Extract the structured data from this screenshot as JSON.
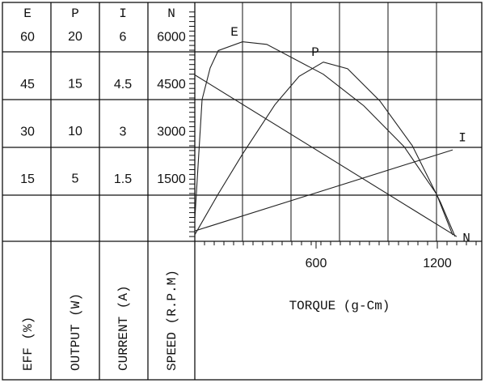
{
  "chart_data": {
    "type": "line",
    "x_label": "TORQUE (g-Cm)",
    "xlim": [
      0,
      1420
    ],
    "xticks": [
      600,
      1200
    ],
    "series": [
      {
        "name": "E",
        "axis_label": "EFF (%)",
        "color": "#222",
        "ylim": [
          0,
          74
        ],
        "yticks": [
          15,
          30,
          45,
          60
        ],
        "x": [
          0,
          36,
          76,
          116,
          236,
          356,
          636,
          836,
          1036,
          1196,
          1276
        ],
        "values": [
          7,
          45,
          55,
          60.5,
          63.3,
          62.5,
          53,
          43,
          30,
          15,
          2
        ]
      },
      {
        "name": "P",
        "axis_label": "OUTPUT (W)",
        "color": "#222",
        "ylim": [
          0,
          24.6
        ],
        "yticks": [
          5,
          10,
          15,
          20
        ],
        "x": [
          0,
          116,
          236,
          396,
          516,
          636,
          756,
          916,
          1076,
          1216,
          1288
        ],
        "values": [
          0.7,
          5,
          9.2,
          14.4,
          17.4,
          18.9,
          18.2,
          14.8,
          10.1,
          4.1,
          0.5
        ]
      },
      {
        "name": "I",
        "axis_label": "CURRENT (A)",
        "color": "#222",
        "ylim": [
          0,
          7.4
        ],
        "yticks": [
          1.5,
          3,
          4.5,
          6
        ],
        "x": [
          0,
          1276
        ],
        "values": [
          0.33,
          2.9
        ]
      },
      {
        "name": "N",
        "axis_label": "SPEED (R.P.M)",
        "color": "#222",
        "ylim": [
          0,
          7400
        ],
        "yticks": [
          1500,
          3000,
          4500,
          6000
        ],
        "x": [
          0,
          1296
        ],
        "values": [
          5280,
          150
        ]
      }
    ]
  }
}
